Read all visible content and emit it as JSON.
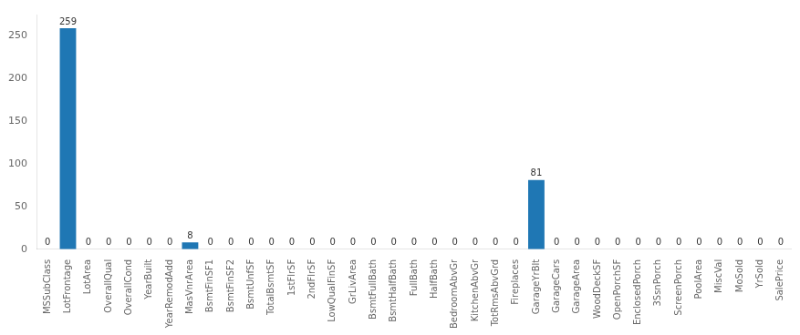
{
  "chart_data": {
    "type": "bar",
    "categories": [
      "MSSubClass",
      "LotFrontage",
      "LotArea",
      "OverallQual",
      "OverallCond",
      "YearBuilt",
      "YearRemodAdd",
      "MasVnrArea",
      "BsmtFinSF1",
      "BsmtFinSF2",
      "BsmtUnfSF",
      "TotalBsmtSF",
      "1stFlrSF",
      "2ndFlrSF",
      "LowQualFinSF",
      "GrLivArea",
      "BsmtFullBath",
      "BsmtHalfBath",
      "FullBath",
      "HalfBath",
      "BedroomAbvGr",
      "KitchenAbvGr",
      "TotRmsAbvGrd",
      "Fireplaces",
      "GarageYrBlt",
      "GarageCars",
      "GarageArea",
      "WoodDeckSF",
      "OpenPorchSF",
      "EnclosedPorch",
      "3SsnPorch",
      "ScreenPorch",
      "PoolArea",
      "MiscVal",
      "MoSold",
      "YrSold",
      "SalePrice"
    ],
    "values": [
      0,
      259,
      0,
      0,
      0,
      0,
      0,
      8,
      0,
      0,
      0,
      0,
      0,
      0,
      0,
      0,
      0,
      0,
      0,
      0,
      0,
      0,
      0,
      0,
      81,
      0,
      0,
      0,
      0,
      0,
      0,
      0,
      0,
      0,
      0,
      0,
      0
    ],
    "color": "#1f77b4",
    "ylim": [
      0,
      275
    ],
    "yticks": [
      0,
      50,
      100,
      150,
      200,
      250
    ],
    "grid": false,
    "data_labels": true
  }
}
